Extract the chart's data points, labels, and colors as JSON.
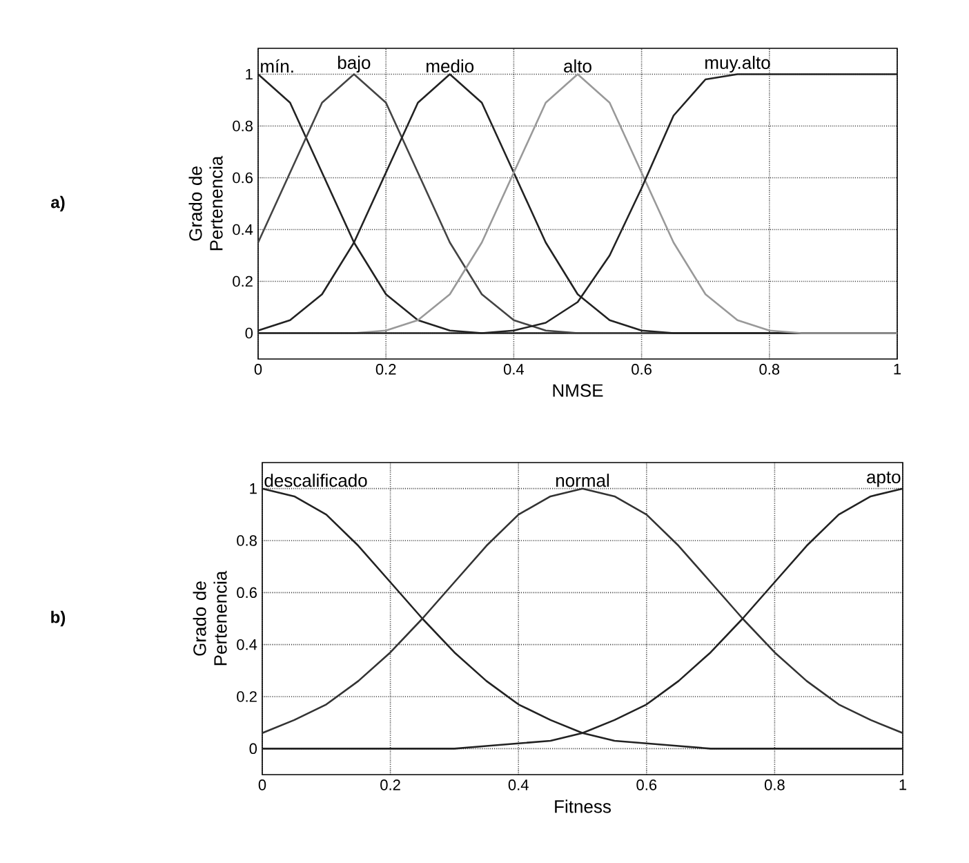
{
  "chart_data": [
    {
      "type": "line",
      "annotations": [
        "a)"
      ],
      "xlabel": "NMSE",
      "ylabel": "Grado de Pertenencia",
      "xlim": [
        0,
        1
      ],
      "ylim": [
        -0.1,
        1.1
      ],
      "xticks": [
        0,
        0.2,
        0.4,
        0.6,
        0.8,
        1
      ],
      "yticks": [
        0,
        0.2,
        0.4,
        0.6,
        0.8,
        1
      ],
      "grid": true,
      "line_style": "solid",
      "x": [
        0,
        0.05,
        0.1,
        0.15,
        0.2,
        0.25,
        0.3,
        0.35,
        0.4,
        0.45,
        0.5,
        0.55,
        0.6,
        0.65,
        0.7,
        0.75,
        0.8,
        0.85,
        0.9,
        0.95,
        1
      ],
      "series": [
        {
          "name": "mín.",
          "color": "#222222",
          "values": [
            1,
            0.89,
            0.62,
            0.35,
            0.15,
            0.05,
            0.01,
            0,
            0,
            0,
            0,
            0,
            0,
            0,
            0,
            0,
            0,
            0,
            0,
            0,
            0
          ]
        },
        {
          "name": "bajo",
          "color": "#444444",
          "values": [
            0.35,
            0.62,
            0.89,
            1,
            0.89,
            0.62,
            0.35,
            0.15,
            0.05,
            0.01,
            0,
            0,
            0,
            0,
            0,
            0,
            0,
            0,
            0,
            0,
            0
          ]
        },
        {
          "name": "medio",
          "color": "#222222",
          "values": [
            0.01,
            0.05,
            0.15,
            0.35,
            0.62,
            0.89,
            1,
            0.89,
            0.62,
            0.35,
            0.15,
            0.05,
            0.01,
            0,
            0,
            0,
            0,
            0,
            0,
            0,
            0
          ]
        },
        {
          "name": "alto",
          "color": "#999999",
          "values": [
            0,
            0,
            0,
            0,
            0.01,
            0.05,
            0.15,
            0.35,
            0.62,
            0.89,
            1,
            0.89,
            0.62,
            0.35,
            0.15,
            0.05,
            0.01,
            0,
            0,
            0,
            0
          ]
        },
        {
          "name": "muy.alto",
          "color": "#222222",
          "values": [
            0,
            0,
            0,
            0,
            0,
            0,
            0,
            0,
            0.01,
            0.04,
            0.12,
            0.3,
            0.56,
            0.84,
            0.98,
            1,
            1,
            1,
            1,
            1,
            1
          ]
        }
      ]
    },
    {
      "type": "line",
      "annotations": [
        "b)"
      ],
      "xlabel": "Fitness",
      "ylabel": "Grado de Pertenencia",
      "xlim": [
        0,
        1
      ],
      "ylim": [
        -0.1,
        1.1
      ],
      "xticks": [
        0,
        0.2,
        0.4,
        0.6,
        0.8,
        1
      ],
      "yticks": [
        0,
        0.2,
        0.4,
        0.6,
        0.8,
        1
      ],
      "grid": true,
      "line_style": "solid",
      "x": [
        0,
        0.05,
        0.1,
        0.15,
        0.2,
        0.25,
        0.3,
        0.35,
        0.4,
        0.45,
        0.5,
        0.55,
        0.6,
        0.65,
        0.7,
        0.75,
        0.8,
        0.85,
        0.9,
        0.95,
        1
      ],
      "series": [
        {
          "name": "descalificado",
          "color": "#222222",
          "values": [
            1,
            0.97,
            0.9,
            0.78,
            0.64,
            0.5,
            0.37,
            0.26,
            0.17,
            0.11,
            0.06,
            0.03,
            0.02,
            0.01,
            0,
            0,
            0,
            0,
            0,
            0,
            0
          ]
        },
        {
          "name": "normal",
          "color": "#333333",
          "values": [
            0.06,
            0.11,
            0.17,
            0.26,
            0.37,
            0.5,
            0.64,
            0.78,
            0.9,
            0.97,
            1,
            0.97,
            0.9,
            0.78,
            0.64,
            0.5,
            0.37,
            0.26,
            0.17,
            0.11,
            0.06
          ]
        },
        {
          "name": "apto",
          "color": "#222222",
          "values": [
            0,
            0,
            0,
            0,
            0,
            0,
            0,
            0.01,
            0.02,
            0.03,
            0.06,
            0.11,
            0.17,
            0.26,
            0.37,
            0.5,
            0.64,
            0.78,
            0.9,
            0.97,
            1
          ]
        }
      ]
    }
  ]
}
